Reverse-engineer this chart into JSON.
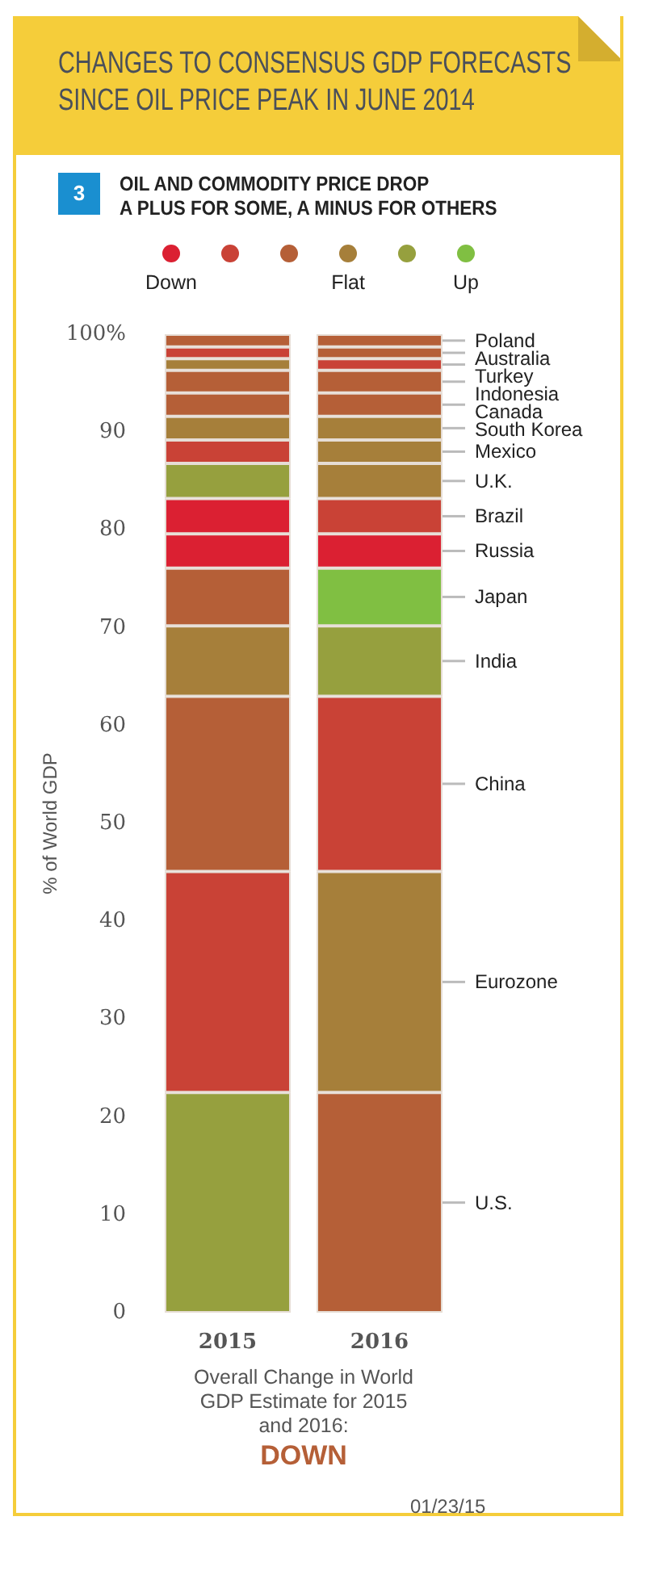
{
  "chart_data": {
    "type": "bar",
    "title": "CHANGES TO CONSENSUS GDP FORECASTS\nSINCE OIL PRICE PEAK IN JUNE 2014",
    "subtitle": "OIL AND COMMODITY PRICE DROP\nA PLUS FOR SOME, A MINUS FOR OTHERS",
    "ylabel": "% of World GDP",
    "categories": [
      "2015",
      "2016"
    ],
    "stacked": true,
    "legend": false,
    "grid": false,
    "ylim": [
      0,
      100
    ],
    "yticks": [
      0,
      10,
      20,
      30,
      40,
      50,
      60,
      70,
      80,
      90,
      {
        "value": 100,
        "label": "100%"
      }
    ],
    "annotations": [
      "3",
      "Down",
      "Flat",
      "Up",
      "Overall Change in World GDP Estimate for 2015 and 2016:",
      "DOWN",
      "01/23/15"
    ],
    "series": [
      {
        "name": "U.S.",
        "values": [
          22.5,
          22.5
        ],
        "colors": [
          "#96a03e",
          "#b55f37"
        ]
      },
      {
        "name": "Eurozone",
        "values": [
          22.6,
          22.6
        ],
        "colors": [
          "#c94236",
          "#a67f3a"
        ]
      },
      {
        "name": "China",
        "values": [
          17.9,
          17.9
        ],
        "colors": [
          "#b55f37",
          "#c94236"
        ]
      },
      {
        "name": "India",
        "values": [
          7.2,
          7.2
        ],
        "colors": [
          "#a67f3a",
          "#96a03e"
        ]
      },
      {
        "name": "Japan",
        "values": [
          5.9,
          5.9
        ],
        "colors": [
          "#b55f37",
          "#80bf42"
        ]
      },
      {
        "name": "Russia",
        "values": [
          3.5,
          3.5
        ],
        "colors": [
          "#db2032",
          "#db2032"
        ]
      },
      {
        "name": "Brazil",
        "values": [
          3.6,
          3.6
        ],
        "colors": [
          "#db2032",
          "#c94236"
        ]
      },
      {
        "name": "U.K.",
        "values": [
          3.6,
          3.6
        ],
        "colors": [
          "#96a03e",
          "#a67f3a"
        ]
      },
      {
        "name": "Mexico",
        "values": [
          2.4,
          2.4
        ],
        "colors": [
          "#c94236",
          "#a67f3a"
        ]
      },
      {
        "name": "South Korea",
        "values": [
          2.4,
          2.4
        ],
        "colors": [
          "#a67f3a",
          "#a67f3a"
        ]
      },
      {
        "name": "Canada",
        "values": [
          2.4,
          2.4
        ],
        "colors": [
          "#b55f37",
          "#b55f37"
        ]
      },
      {
        "name": "Indonesia",
        "values": [
          2.3,
          2.3
        ],
        "colors": [
          "#b55f37",
          "#b55f37"
        ]
      },
      {
        "name": "Turkey",
        "values": [
          1.2,
          1.2
        ],
        "colors": [
          "#a67f3a",
          "#c94236"
        ]
      },
      {
        "name": "Australia",
        "values": [
          1.2,
          1.2
        ],
        "colors": [
          "#c94236",
          "#b55f37"
        ]
      },
      {
        "name": "Poland",
        "values": [
          1.3,
          1.3
        ],
        "colors": [
          "#b55f37",
          "#b55f37"
        ]
      }
    ]
  }
}
